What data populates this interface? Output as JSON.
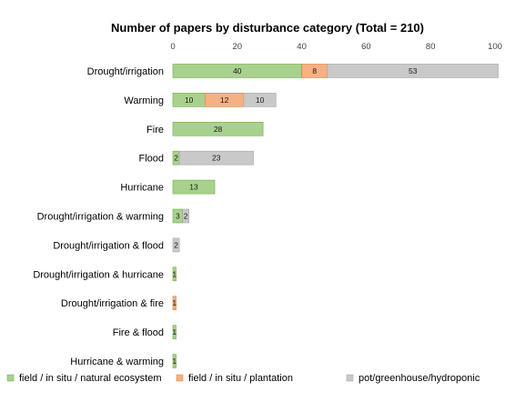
{
  "chart_data": {
    "type": "bar",
    "orientation": "horizontal",
    "stacked": true,
    "title": "Number of papers by disturbance category (Total = 210)",
    "xlabel": "",
    "ylabel": "",
    "xlim": [
      0,
      100
    ],
    "xticks": [
      0,
      20,
      40,
      60,
      80,
      100
    ],
    "x_axis_position": "top",
    "grid": false,
    "legend_position": "bottom",
    "categories": [
      "Drought/irrigation",
      "Warming",
      "Fire",
      "Flood",
      "Hurricane",
      "Drought/irrigation & warming",
      "Drought/irrigation & flood",
      "Drought/irrigation & hurricane",
      "Drought/irrigation & fire",
      "Fire & flood",
      "Hurricane & warming"
    ],
    "series": [
      {
        "name": "field / in situ / natural ecosystem",
        "color": "#a9d18e",
        "border": "#70ad47",
        "values": [
          40,
          10,
          28,
          2,
          13,
          3,
          0,
          1,
          0,
          1,
          1
        ]
      },
      {
        "name": "field / in situ / plantation",
        "color": "#f4b183",
        "border": "#ed7d31",
        "values": [
          8,
          12,
          0,
          0,
          0,
          0,
          0,
          0,
          1,
          0,
          0
        ]
      },
      {
        "name": "pot/greenhouse/hydroponic",
        "color": "#c9c9c9",
        "border": "#a5a5a5",
        "values": [
          53,
          10,
          0,
          23,
          0,
          2,
          2,
          0,
          0,
          0,
          0
        ]
      }
    ]
  }
}
